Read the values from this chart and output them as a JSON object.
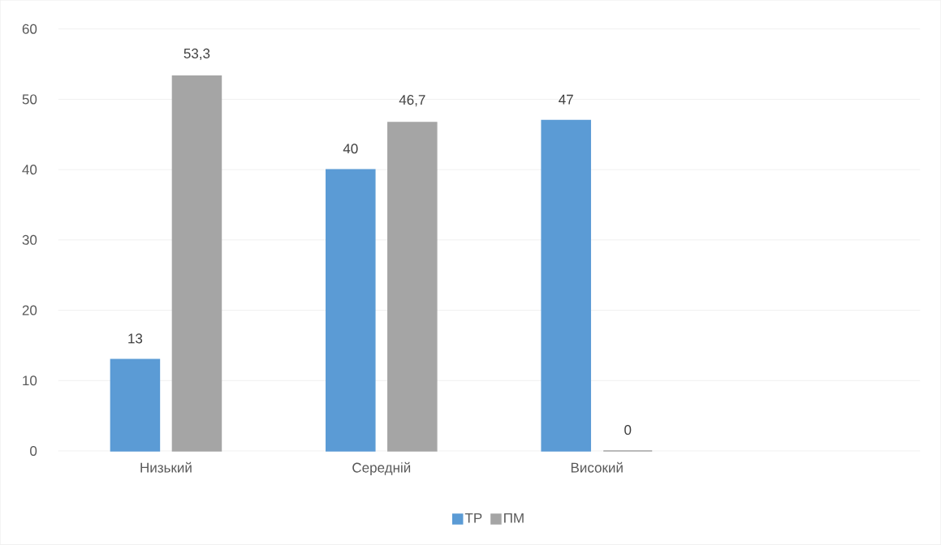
{
  "chart_data": {
    "type": "bar",
    "categories": [
      "Низький",
      "Середній",
      "Високий",
      null
    ],
    "series": [
      {
        "name": "ТР",
        "color": "#5b9bd5",
        "values": [
          13,
          40,
          47,
          null
        ],
        "value_labels": [
          "13",
          "40",
          "47",
          null
        ]
      },
      {
        "name": "ПМ",
        "color": "#a5a5a5",
        "values": [
          53.3,
          46.7,
          0,
          null
        ],
        "value_labels": [
          "53,3",
          "46,7",
          "0",
          null
        ]
      }
    ],
    "ylim": [
      0,
      60
    ],
    "yticks": [
      0,
      10,
      20,
      30,
      40,
      50,
      60
    ],
    "grid": "y",
    "legend": "bottom"
  }
}
